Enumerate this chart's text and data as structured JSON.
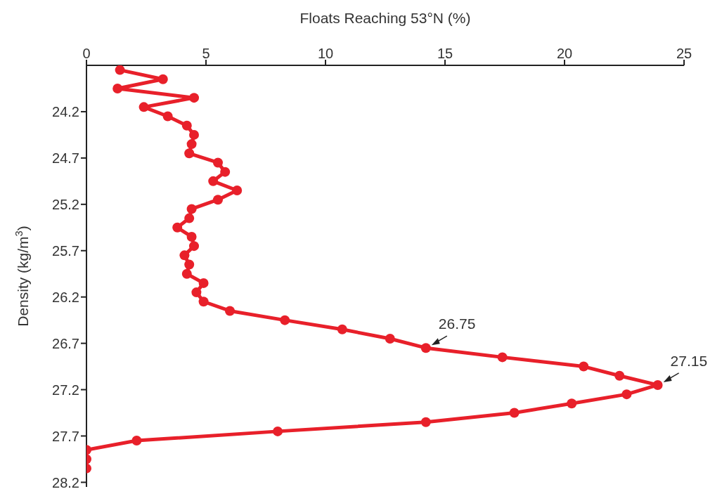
{
  "chart_data": {
    "type": "line",
    "xlabel": "Floats Reaching 53°N (%)",
    "ylabel": "Density (kg/m$^{3}$)",
    "x": [
      1.4,
      3.2,
      1.3,
      4.5,
      2.4,
      3.4,
      4.2,
      4.5,
      4.4,
      4.3,
      5.5,
      5.8,
      5.3,
      6.3,
      5.5,
      4.4,
      4.3,
      3.8,
      4.4,
      4.5,
      4.1,
      4.3,
      4.2,
      4.9,
      4.6,
      4.9,
      6.0,
      8.3,
      10.7,
      12.7,
      14.2,
      17.4,
      20.8,
      22.3,
      23.9,
      22.6,
      20.3,
      17.9,
      14.2,
      8.0,
      2.1,
      0,
      0,
      0
    ],
    "values": [
      23.75,
      23.85,
      23.95,
      24.05,
      24.15,
      24.25,
      24.35,
      24.45,
      24.55,
      24.65,
      24.75,
      24.85,
      24.95,
      25.05,
      25.15,
      25.25,
      25.35,
      25.45,
      25.55,
      25.65,
      25.75,
      25.85,
      25.95,
      26.05,
      26.15,
      26.25,
      26.35,
      26.45,
      26.55,
      26.65,
      26.75,
      26.85,
      26.95,
      27.05,
      27.15,
      27.25,
      27.35,
      27.45,
      27.55,
      27.65,
      27.75,
      27.85,
      27.95,
      28.05
    ],
    "color": "#e8202a",
    "marker": "circle",
    "line_style": "solid",
    "grid": false,
    "xlim": [
      0,
      25
    ],
    "xticks": [
      0,
      5,
      10,
      15,
      20,
      25
    ],
    "ylim": [
      28.25,
      23.7
    ],
    "yticks": [
      24.2,
      24.7,
      25.2,
      25.7,
      26.2,
      26.7,
      27.2,
      27.7,
      28.2
    ],
    "annotations": [
      {
        "text": "26.75",
        "x": 14.2,
        "y": 26.75
      },
      {
        "text": "27.15",
        "x": 23.9,
        "y": 27.15
      }
    ]
  }
}
